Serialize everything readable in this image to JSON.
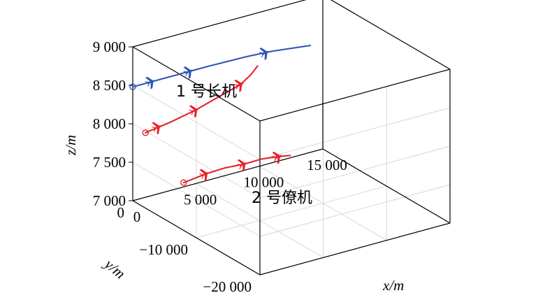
{
  "chart_data": {
    "type": "line-3d",
    "title": "",
    "xlabel": "x/m",
    "ylabel": "y/m",
    "zlabel": "z/m",
    "xlim": [
      0,
      15000
    ],
    "ylim": [
      -20000,
      0
    ],
    "zlim": [
      7000,
      9000
    ],
    "grid": true,
    "x_ticks": [
      {
        "value": 0,
        "label": "0"
      },
      {
        "value": 5000,
        "label": "5 000"
      },
      {
        "value": 10000,
        "label": "10 000"
      },
      {
        "value": 15000,
        "label": "15 000"
      }
    ],
    "y_ticks": [
      {
        "value": 0,
        "label": "0"
      },
      {
        "value": -10000,
        "label": "−10 000"
      },
      {
        "value": -20000,
        "label": "−20 000"
      }
    ],
    "z_ticks": [
      {
        "value": 7000,
        "label": "7 000"
      },
      {
        "value": 7500,
        "label": "7 500"
      },
      {
        "value": 8000,
        "label": "8 000"
      },
      {
        "value": 8500,
        "label": "8 500"
      },
      {
        "value": 9000,
        "label": "9 000"
      }
    ],
    "series": [
      {
        "color": "#e8202a",
        "style": "dotted-line-with-aircraft-markers",
        "x": [
          0,
          2000,
          4000,
          6000,
          8000,
          9000,
          9700
        ],
        "y": [
          -2000,
          -2000,
          -1900,
          -1500,
          -1000,
          -600,
          -300
        ],
        "z": [
          7980,
          8030,
          8090,
          8150,
          8200,
          8260,
          8330
        ],
        "markers": [
          {
            "x": 1000,
            "y": -2000,
            "z": 8010
          },
          {
            "x": 4000,
            "y": -1900,
            "z": 8090
          },
          {
            "x": 8000,
            "y": -1000,
            "z": 8200
          }
        ]
      },
      {
        "color": "#2f55b4",
        "style": "dotted-line-with-aircraft-markers",
        "x": [
          0,
          3000,
          6000,
          9000,
          11000,
          13000,
          14000
        ],
        "y": [
          0,
          0,
          0,
          0,
          0,
          0,
          0
        ],
        "z": [
          8480,
          8480,
          8480,
          8470,
          8450,
          8410,
          8390
        ],
        "markers": [
          {
            "x": 1500,
            "y": 0,
            "z": 8480
          },
          {
            "x": 4500,
            "y": 0,
            "z": 8480
          },
          {
            "x": 10500,
            "y": 0,
            "z": 8455
          }
        ]
      },
      {
        "color": "#e8202a",
        "style": "dotted-line-with-aircraft-markers",
        "x": [
          0,
          2000,
          4000,
          6000,
          8000,
          10000,
          11500
        ],
        "y": [
          -8000,
          -7500,
          -6500,
          -5500,
          -4300,
          -3000,
          -2000
        ],
        "z": [
          7620,
          7620,
          7560,
          7470,
          7390,
          7270,
          7170
        ],
        "markers": [
          {
            "x": 2000,
            "y": -7500,
            "z": 7620
          },
          {
            "x": 6000,
            "y": -5500,
            "z": 7470
          },
          {
            "x": 10000,
            "y": -3000,
            "z": 7270
          }
        ]
      }
    ],
    "annotations": [
      {
        "text": "1 号长机",
        "x": 3500,
        "y": 0,
        "z": 8530
      },
      {
        "text": "2 号僚机",
        "x": 6500,
        "y": -5200,
        "z": 7150
      }
    ]
  }
}
